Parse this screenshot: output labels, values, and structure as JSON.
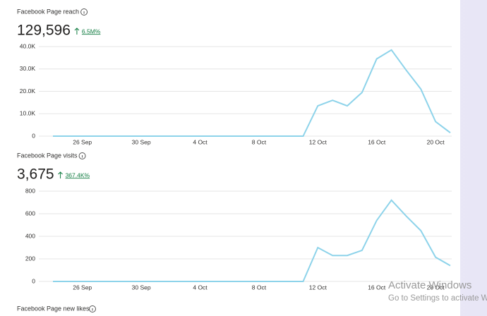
{
  "chart_data": [
    {
      "type": "line",
      "title": "Facebook Page reach",
      "total": "129,596",
      "change": "6.5M%",
      "categories": [
        null,
        null,
        "26 Sep",
        null,
        null,
        null,
        "30 Sep",
        null,
        null,
        null,
        "4 Oct",
        null,
        null,
        null,
        "8 Oct",
        null,
        null,
        null,
        "12 Oct",
        null,
        null,
        null,
        "16 Oct",
        null,
        null,
        null,
        "20 Oct",
        null
      ],
      "values": [
        0,
        0,
        0,
        0,
        0,
        0,
        0,
        0,
        0,
        0,
        0,
        0,
        0,
        0,
        0,
        0,
        0,
        0,
        13500,
        16000,
        13500,
        19500,
        34500,
        38500,
        29500,
        21000,
        6500,
        1500
      ],
      "color": "#8dd3ea",
      "ylim": [
        0,
        40000
      ],
      "yticks": [
        0,
        {
          "value": 10000,
          "label": "10.0K"
        },
        {
          "value": 20000,
          "label": "20.0K"
        },
        {
          "value": 30000,
          "label": "30.0K"
        },
        {
          "value": 40000,
          "label": "40.0K"
        }
      ],
      "grid": true
    },
    {
      "type": "line",
      "title": "Facebook Page visits",
      "total": "3,675",
      "change": "367.4K%",
      "categories": [
        null,
        null,
        "26 Sep",
        null,
        null,
        null,
        "30 Sep",
        null,
        null,
        null,
        "4 Oct",
        null,
        null,
        null,
        "8 Oct",
        null,
        null,
        null,
        "12 Oct",
        null,
        null,
        null,
        "16 Oct",
        null,
        null,
        null,
        "20 Oct",
        null
      ],
      "values": [
        0,
        0,
        0,
        0,
        0,
        0,
        0,
        0,
        0,
        0,
        0,
        0,
        0,
        0,
        0,
        0,
        0,
        0,
        300,
        230,
        230,
        275,
        540,
        720,
        580,
        450,
        215,
        140
      ],
      "color": "#8dd3ea",
      "ylim": [
        0,
        800
      ],
      "yticks": [
        0,
        200,
        400,
        600,
        800
      ],
      "grid": true
    }
  ],
  "next_section": {
    "title": "Facebook Page new likes"
  },
  "watermark": {
    "line1": "Activate Windows",
    "line2": "Go to Settings to activate W"
  }
}
